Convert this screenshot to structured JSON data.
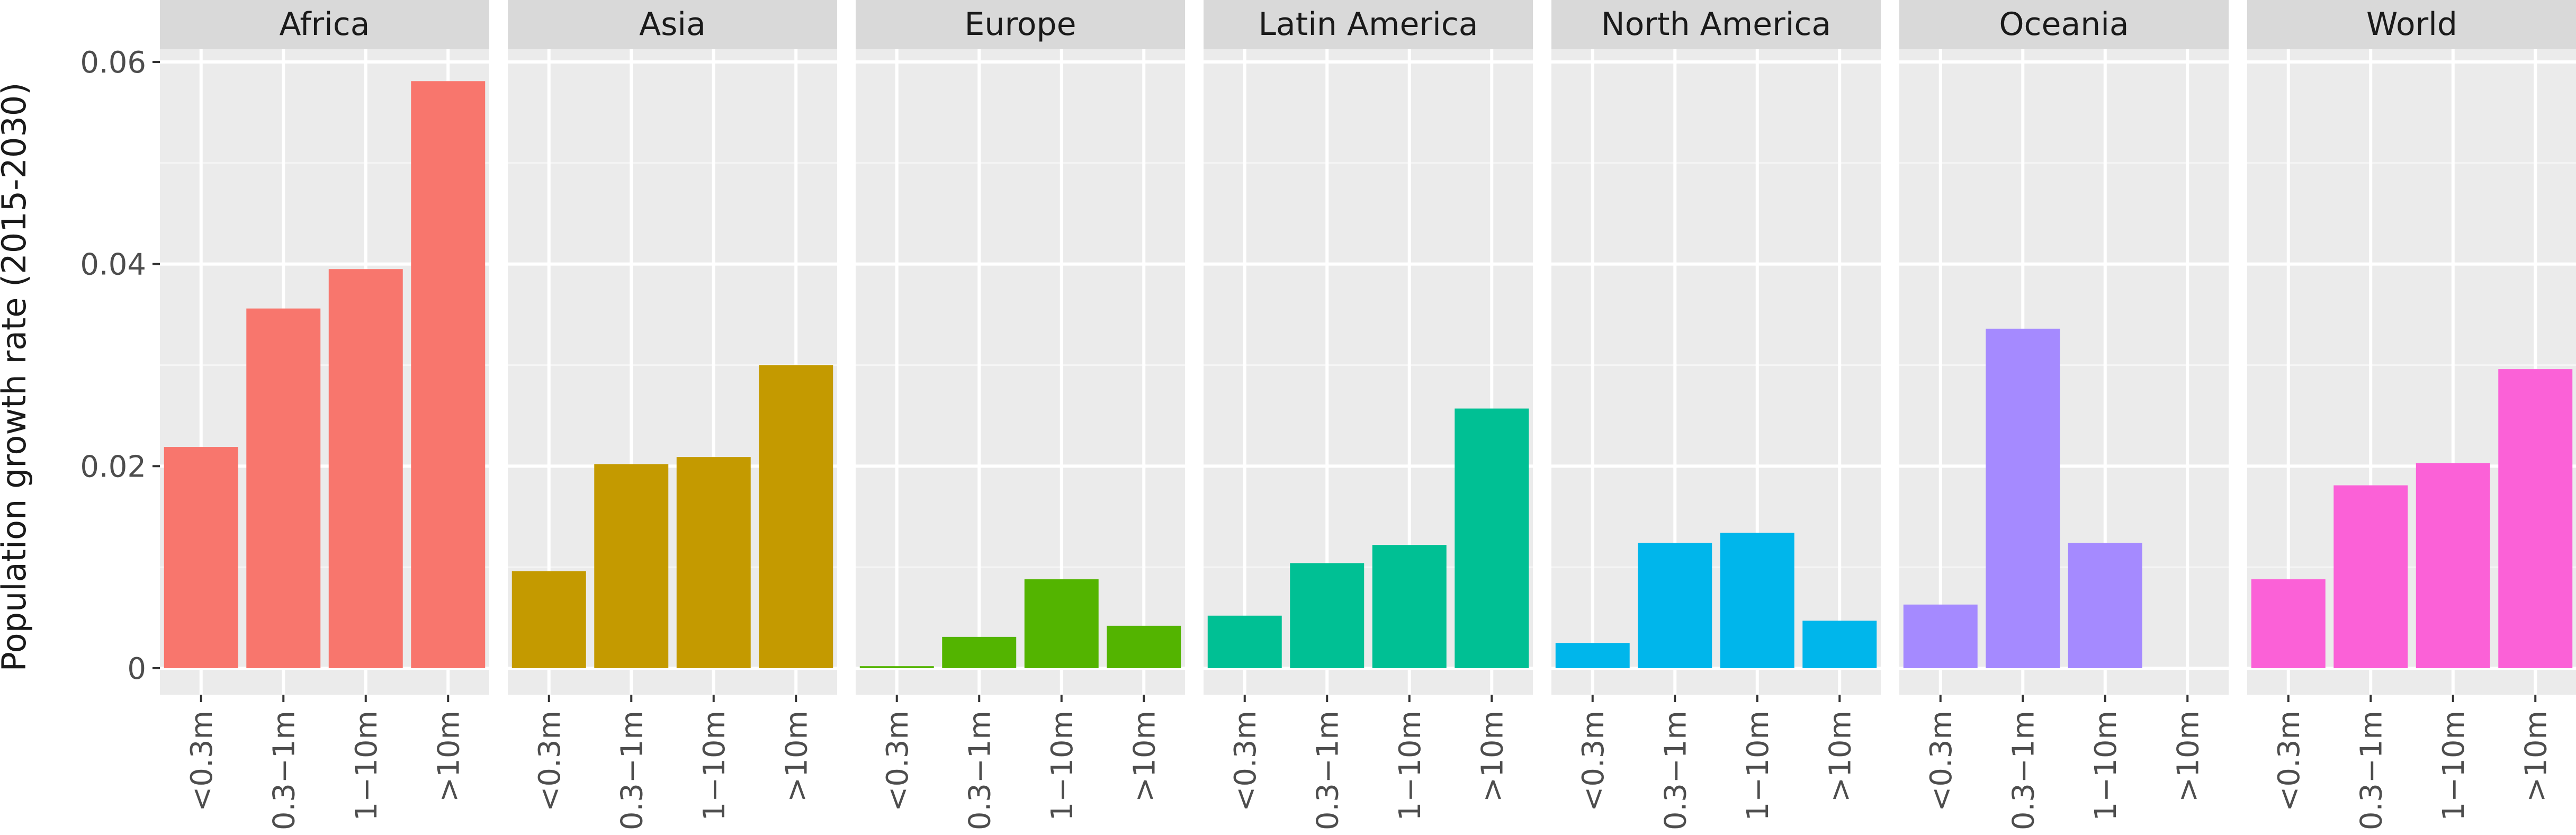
{
  "chart_data": {
    "type": "bar",
    "facet": "region",
    "ylabel": "Population growth rate (2015-2030)",
    "xlabel": "",
    "ylim": [
      0,
      0.064
    ],
    "y_ticks": [
      0,
      0.02,
      0.04,
      0.06
    ],
    "y_tick_labels": [
      "0",
      "0.02",
      "0.04",
      "0.06"
    ],
    "categories": [
      "<0.3m",
      "0.3−1m",
      "1−10m",
      ">10m"
    ],
    "grid": true,
    "legend": "none",
    "panels": [
      {
        "name": "Africa",
        "color": "#F8766D",
        "values": [
          0.0219,
          0.0356,
          0.0395,
          0.0581
        ]
      },
      {
        "name": "Asia",
        "color": "#C49A00",
        "values": [
          0.0096,
          0.0202,
          0.0209,
          0.03
        ]
      },
      {
        "name": "Europe",
        "color": "#53B400",
        "values": [
          0.0002,
          0.0031,
          0.0088,
          0.0042
        ]
      },
      {
        "name": "Latin America",
        "color": "#00C094",
        "values": [
          0.0052,
          0.0104,
          0.0122,
          0.0257
        ]
      },
      {
        "name": "North America",
        "color": "#00B6EB",
        "values": [
          0.0025,
          0.0124,
          0.0134,
          0.0047
        ]
      },
      {
        "name": "Oceania",
        "color": "#A58AFF",
        "values": [
          0.0063,
          0.0336,
          0.0124,
          0.0
        ]
      },
      {
        "name": "World",
        "color": "#FB61D7",
        "values": [
          0.0088,
          0.0181,
          0.0203,
          0.0296
        ]
      }
    ]
  }
}
